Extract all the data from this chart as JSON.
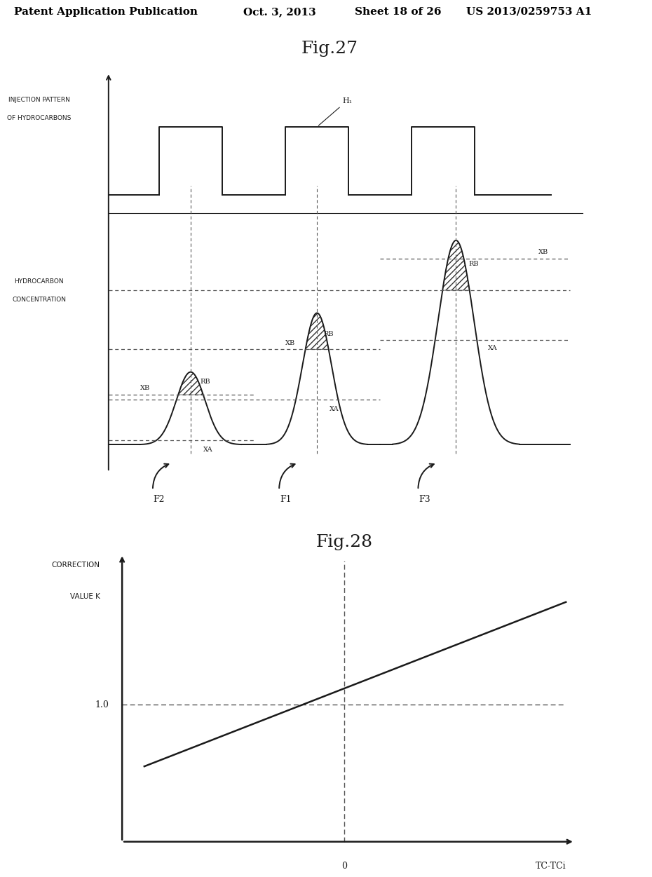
{
  "fig_title_top": "Patent Application Publication",
  "fig_date": "Oct. 3, 2013",
  "fig_sheet": "Sheet 18 of 26",
  "fig_patent": "US 2013/0259753 A1",
  "fig27_title": "Fig.27",
  "fig28_title": "Fig.28",
  "bg_color": "#ffffff",
  "line_color": "#1a1a1a",
  "hatch_color": "#333333",
  "dash_color": "#555555"
}
